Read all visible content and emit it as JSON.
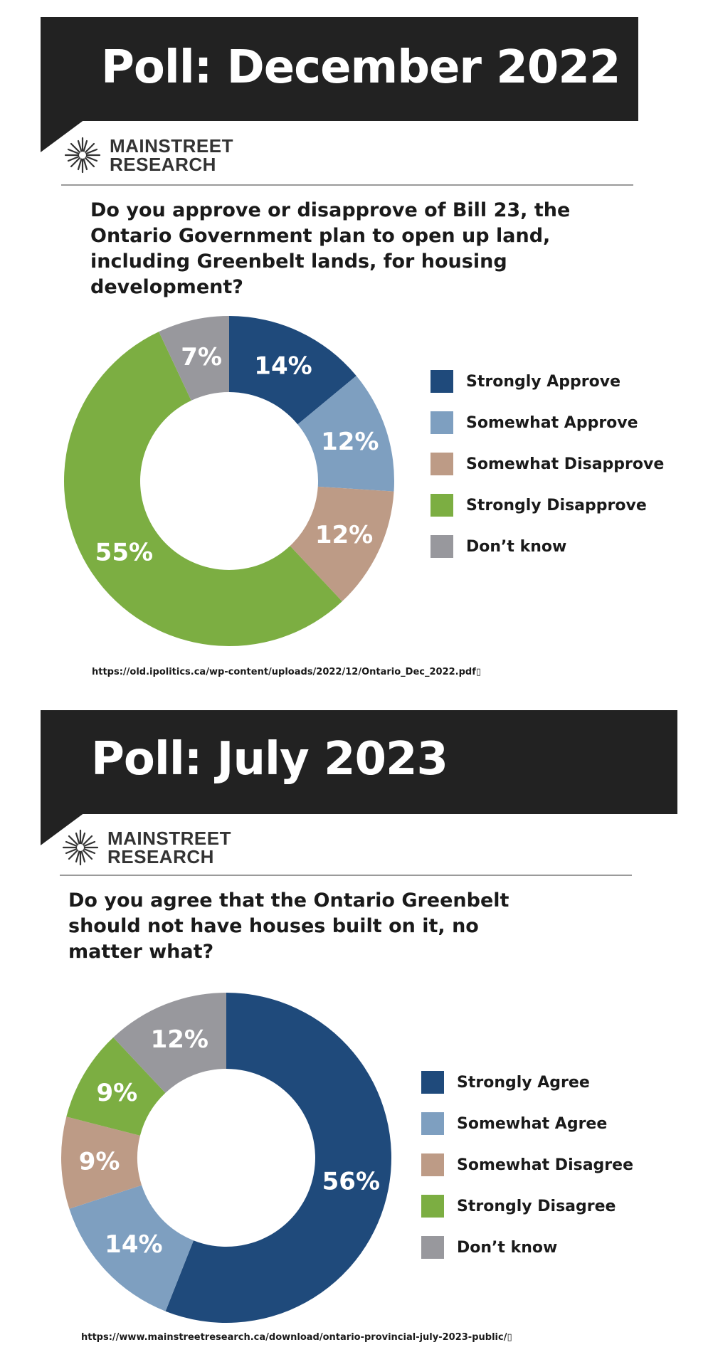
{
  "colors": {
    "strong_positive": "#1f4a7b",
    "somewhat_positive": "#7e9fc0",
    "somewhat_negative": "#bd9b86",
    "strong_negative": "#7cae42",
    "dont_know": "#98989d",
    "banner": "#222222"
  },
  "logo": {
    "line1": "MAINSTREET",
    "line2": "RESEARCH"
  },
  "polls": [
    {
      "banner_title": "Poll: December 2022",
      "question": "Do you approve or disapprove of Bill 23, the Ontario Government plan to open up land, including Greenbelt lands, for housing development?",
      "source": "https://old.ipolitics.ca/wp-content/uploads/2022/12/Ontario_Dec_2022.pdf▯"
    },
    {
      "banner_title": "Poll: July 2023",
      "question": "Do you agree that the Ontario Greenbelt should not have houses built on it, no matter what?",
      "source": "https://www.mainstreetresearch.ca/download/ontario-provincial-july-2023-public/▯"
    }
  ],
  "chart_data": [
    {
      "type": "pie",
      "donut": true,
      "categories": [
        "Strongly Approve",
        "Somewhat Approve",
        "Somewhat Disapprove",
        "Strongly Disapprove",
        "Don’t know"
      ],
      "values": [
        14,
        12,
        12,
        55,
        7
      ],
      "labels": [
        "14%",
        "12%",
        "12%",
        "55%",
        "7%"
      ],
      "colors": [
        "#1f4a7b",
        "#7e9fc0",
        "#bd9b86",
        "#7cae42",
        "#98989d"
      ],
      "legend_position": "right"
    },
    {
      "type": "pie",
      "donut": true,
      "categories": [
        "Strongly Agree",
        "Somewhat Agree",
        "Somewhat Disagree",
        "Strongly Disagree",
        "Don’t know"
      ],
      "values": [
        56,
        14,
        9,
        9,
        12
      ],
      "labels": [
        "56%",
        "14%",
        "9%",
        "9%",
        "12%"
      ],
      "colors": [
        "#1f4a7b",
        "#7e9fc0",
        "#bd9b86",
        "#7cae42",
        "#98989d"
      ],
      "legend_position": "right"
    }
  ]
}
